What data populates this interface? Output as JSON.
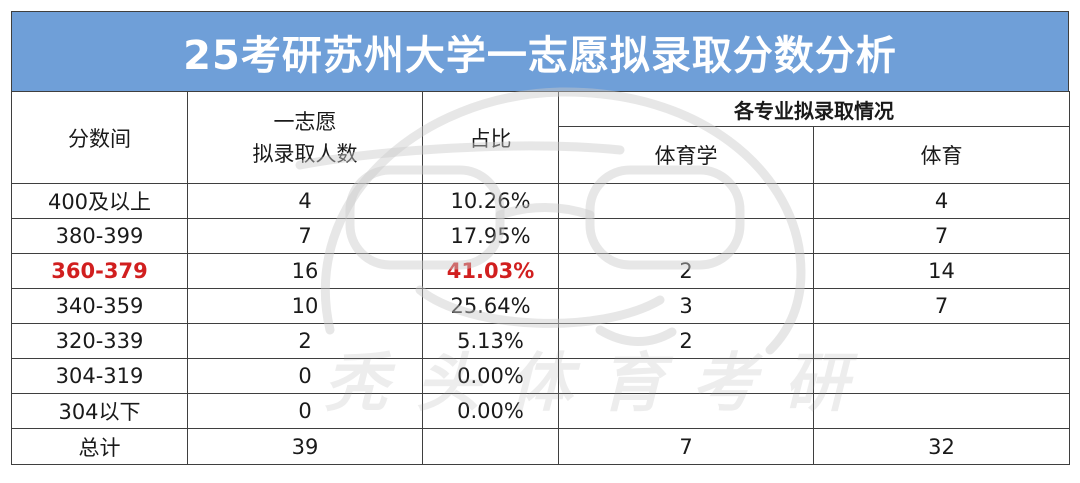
{
  "title": "25考研苏州大学一志愿拟录取分数分析",
  "watermark_text": "秃头体育考研",
  "colors": {
    "title_bg": "#6f9fd8",
    "highlight": "#d11f1f"
  },
  "headers": {
    "score_range": "分数间",
    "admitted_line1": "一志愿",
    "admitted_line2": "拟录取人数",
    "ratio": "占比",
    "group": "各专业拟录取情况",
    "major1": "体育学",
    "major2": "体育"
  },
  "rows": [
    {
      "range": "400及以上",
      "count": "4",
      "ratio": "10.26%",
      "major1": "",
      "major2": "4",
      "highlight": false
    },
    {
      "range": "380-399",
      "count": "7",
      "ratio": "17.95%",
      "major1": "",
      "major2": "7",
      "highlight": false
    },
    {
      "range": "360-379",
      "count": "16",
      "ratio": "41.03%",
      "major1": "2",
      "major2": "14",
      "highlight": true
    },
    {
      "range": "340-359",
      "count": "10",
      "ratio": "25.64%",
      "major1": "3",
      "major2": "7",
      "highlight": false
    },
    {
      "range": "320-339",
      "count": "2",
      "ratio": "5.13%",
      "major1": "2",
      "major2": "",
      "highlight": false
    },
    {
      "range": "304-319",
      "count": "0",
      "ratio": "0.00%",
      "major1": "",
      "major2": "",
      "highlight": false
    },
    {
      "range": "304以下",
      "count": "0",
      "ratio": "0.00%",
      "major1": "",
      "major2": "",
      "highlight": false
    }
  ],
  "total": {
    "label": "总计",
    "count": "39",
    "ratio": "",
    "major1": "7",
    "major2": "32"
  }
}
